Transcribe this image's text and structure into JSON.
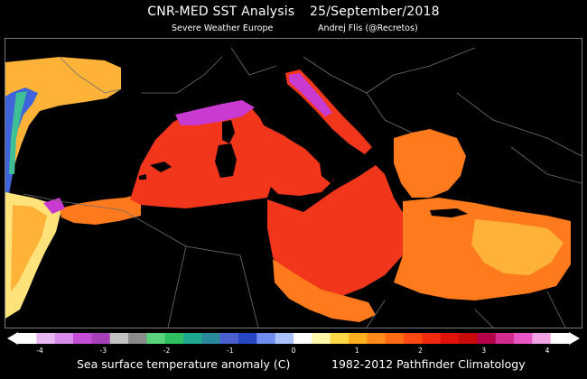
{
  "header": {
    "title_main": "CNR-MED SST Analysis",
    "title_date": "25/September/2018",
    "subtitle_left": "Severe Weather Europe",
    "subtitle_right": "Andrej Flis (@Recretos)"
  },
  "colorbar": {
    "min": -4,
    "max": 4,
    "tick_labels": [
      "-4",
      "-3",
      "-2",
      "-1",
      "0",
      "1",
      "2",
      "3",
      "4"
    ],
    "colors": [
      "#ffffff",
      "#e9b8f2",
      "#d98be8",
      "#c44fd6",
      "#a63fb8",
      "#c2c2c2",
      "#8a8a8a",
      "#5ad27a",
      "#2fbf61",
      "#1fa891",
      "#2a8a9c",
      "#4a5fcf",
      "#2747c2",
      "#6f8df0",
      "#a9c2ff",
      "#ffffff",
      "#fff8a8",
      "#ffd84a",
      "#ffb01f",
      "#ff8c1a",
      "#ff6a14",
      "#ff4812",
      "#f22a0f",
      "#e0120b",
      "#c90a0a",
      "#b5004a",
      "#d42b8f",
      "#e856c6",
      "#f2a3e6",
      "#ffffff"
    ]
  },
  "footer": {
    "left": "Sea surface temperature anomaly (C)",
    "right": "1982-2012 Pathfinder Climatology"
  },
  "map": {
    "colors": {
      "land": "#000000",
      "border": "#6e6e6e",
      "sea_main": "#f2361b",
      "sea_hot": "#ff7a1c",
      "sea_warm": "#ffb238",
      "sea_light": "#ffe27a",
      "sea_magenta": "#c83ad0",
      "atlantic_cool": "#3f63d8",
      "atlantic_green": "#3fbf96"
    }
  }
}
